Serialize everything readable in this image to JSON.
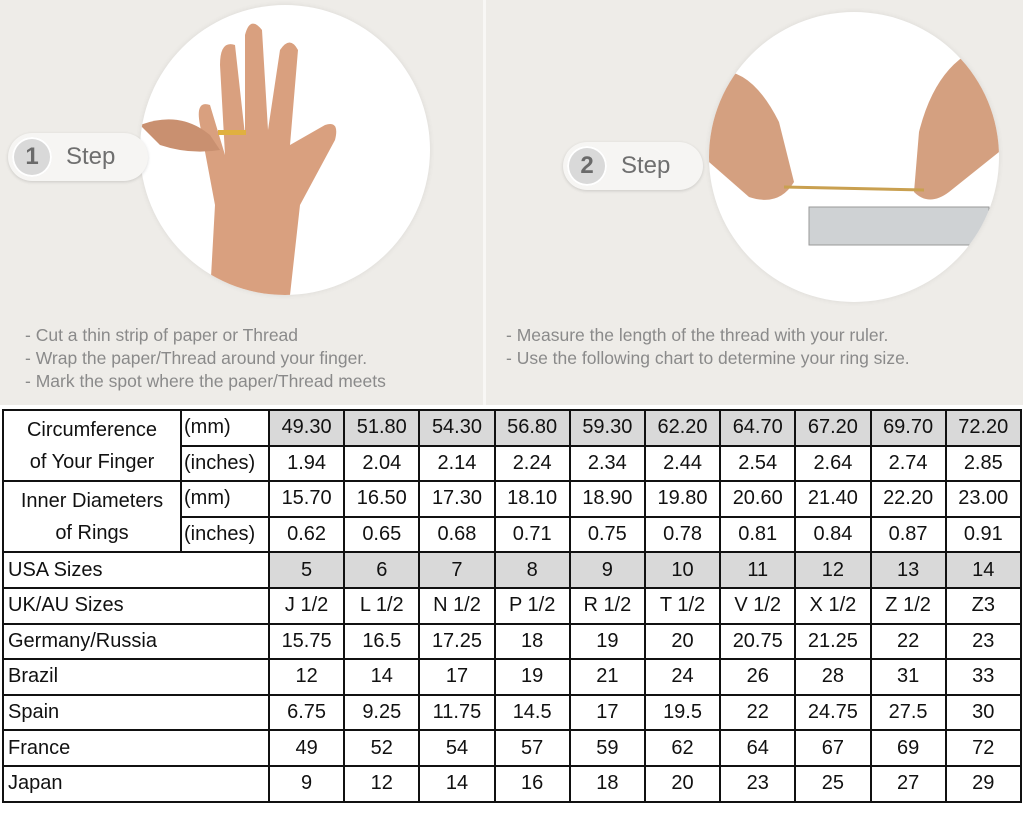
{
  "steps": [
    {
      "number": "1",
      "label": "Step",
      "instructions": [
        "Cut a thin strip of paper or Thread",
        "Wrap the paper/Thread around your finger.",
        "Mark the spot where the paper/Thread meets"
      ]
    },
    {
      "number": "2",
      "label": "Step",
      "instructions": [
        "Measure the length of the thread with your ruler.",
        "Use the following chart to determine your ring size."
      ]
    }
  ],
  "table": {
    "shade_color": "#d9d9d9",
    "circumference": {
      "label_line1": "Circumference",
      "label_line2": "of Your Finger",
      "mm_unit": "(mm)",
      "mm": [
        "49.30",
        "51.80",
        "54.30",
        "56.80",
        "59.30",
        "62.20",
        "64.70",
        "67.20",
        "69.70",
        "72.20"
      ],
      "inches_unit": "(inches)",
      "inches": [
        "1.94",
        "2.04",
        "2.14",
        "2.24",
        "2.34",
        "2.44",
        "2.54",
        "2.64",
        "2.74",
        "2.85"
      ]
    },
    "inner_diameter": {
      "label_line1": "Inner Diameters",
      "label_line2": "of Rings",
      "mm_unit": "(mm)",
      "mm": [
        "15.70",
        "16.50",
        "17.30",
        "18.10",
        "18.90",
        "19.80",
        "20.60",
        "21.40",
        "22.20",
        "23.00"
      ],
      "inches_unit": "(inches)",
      "inches": [
        "0.62",
        "0.65",
        "0.68",
        "0.71",
        "0.75",
        "0.78",
        "0.81",
        "0.84",
        "0.87",
        "0.91"
      ]
    },
    "rows": [
      {
        "label": "USA Sizes",
        "shaded": true,
        "values": [
          "5",
          "6",
          "7",
          "8",
          "9",
          "10",
          "11",
          "12",
          "13",
          "14"
        ]
      },
      {
        "label": "UK/AU Sizes",
        "values": [
          "J 1/2",
          "L 1/2",
          "N 1/2",
          "P 1/2",
          "R 1/2",
          "T 1/2",
          "V 1/2",
          "X 1/2",
          "Z 1/2",
          "Z3"
        ]
      },
      {
        "label": "Germany/Russia",
        "values": [
          "15.75",
          "16.5",
          "17.25",
          "18",
          "19",
          "20",
          "20.75",
          "21.25",
          "22",
          "23"
        ]
      },
      {
        "label": "Brazil",
        "values": [
          "12",
          "14",
          "17",
          "19",
          "21",
          "24",
          "26",
          "28",
          "31",
          "33"
        ]
      },
      {
        "label": "Spain",
        "values": [
          "6.75",
          "9.25",
          "11.75",
          "14.5",
          "17",
          "19.5",
          "22",
          "24.75",
          "27.5",
          "30"
        ]
      },
      {
        "label": "France",
        "values": [
          "49",
          "52",
          "54",
          "57",
          "59",
          "62",
          "64",
          "67",
          "69",
          "72"
        ]
      },
      {
        "label": "Japan",
        "values": [
          "9",
          "12",
          "14",
          "16",
          "18",
          "20",
          "23",
          "25",
          "27",
          "29"
        ]
      }
    ]
  }
}
